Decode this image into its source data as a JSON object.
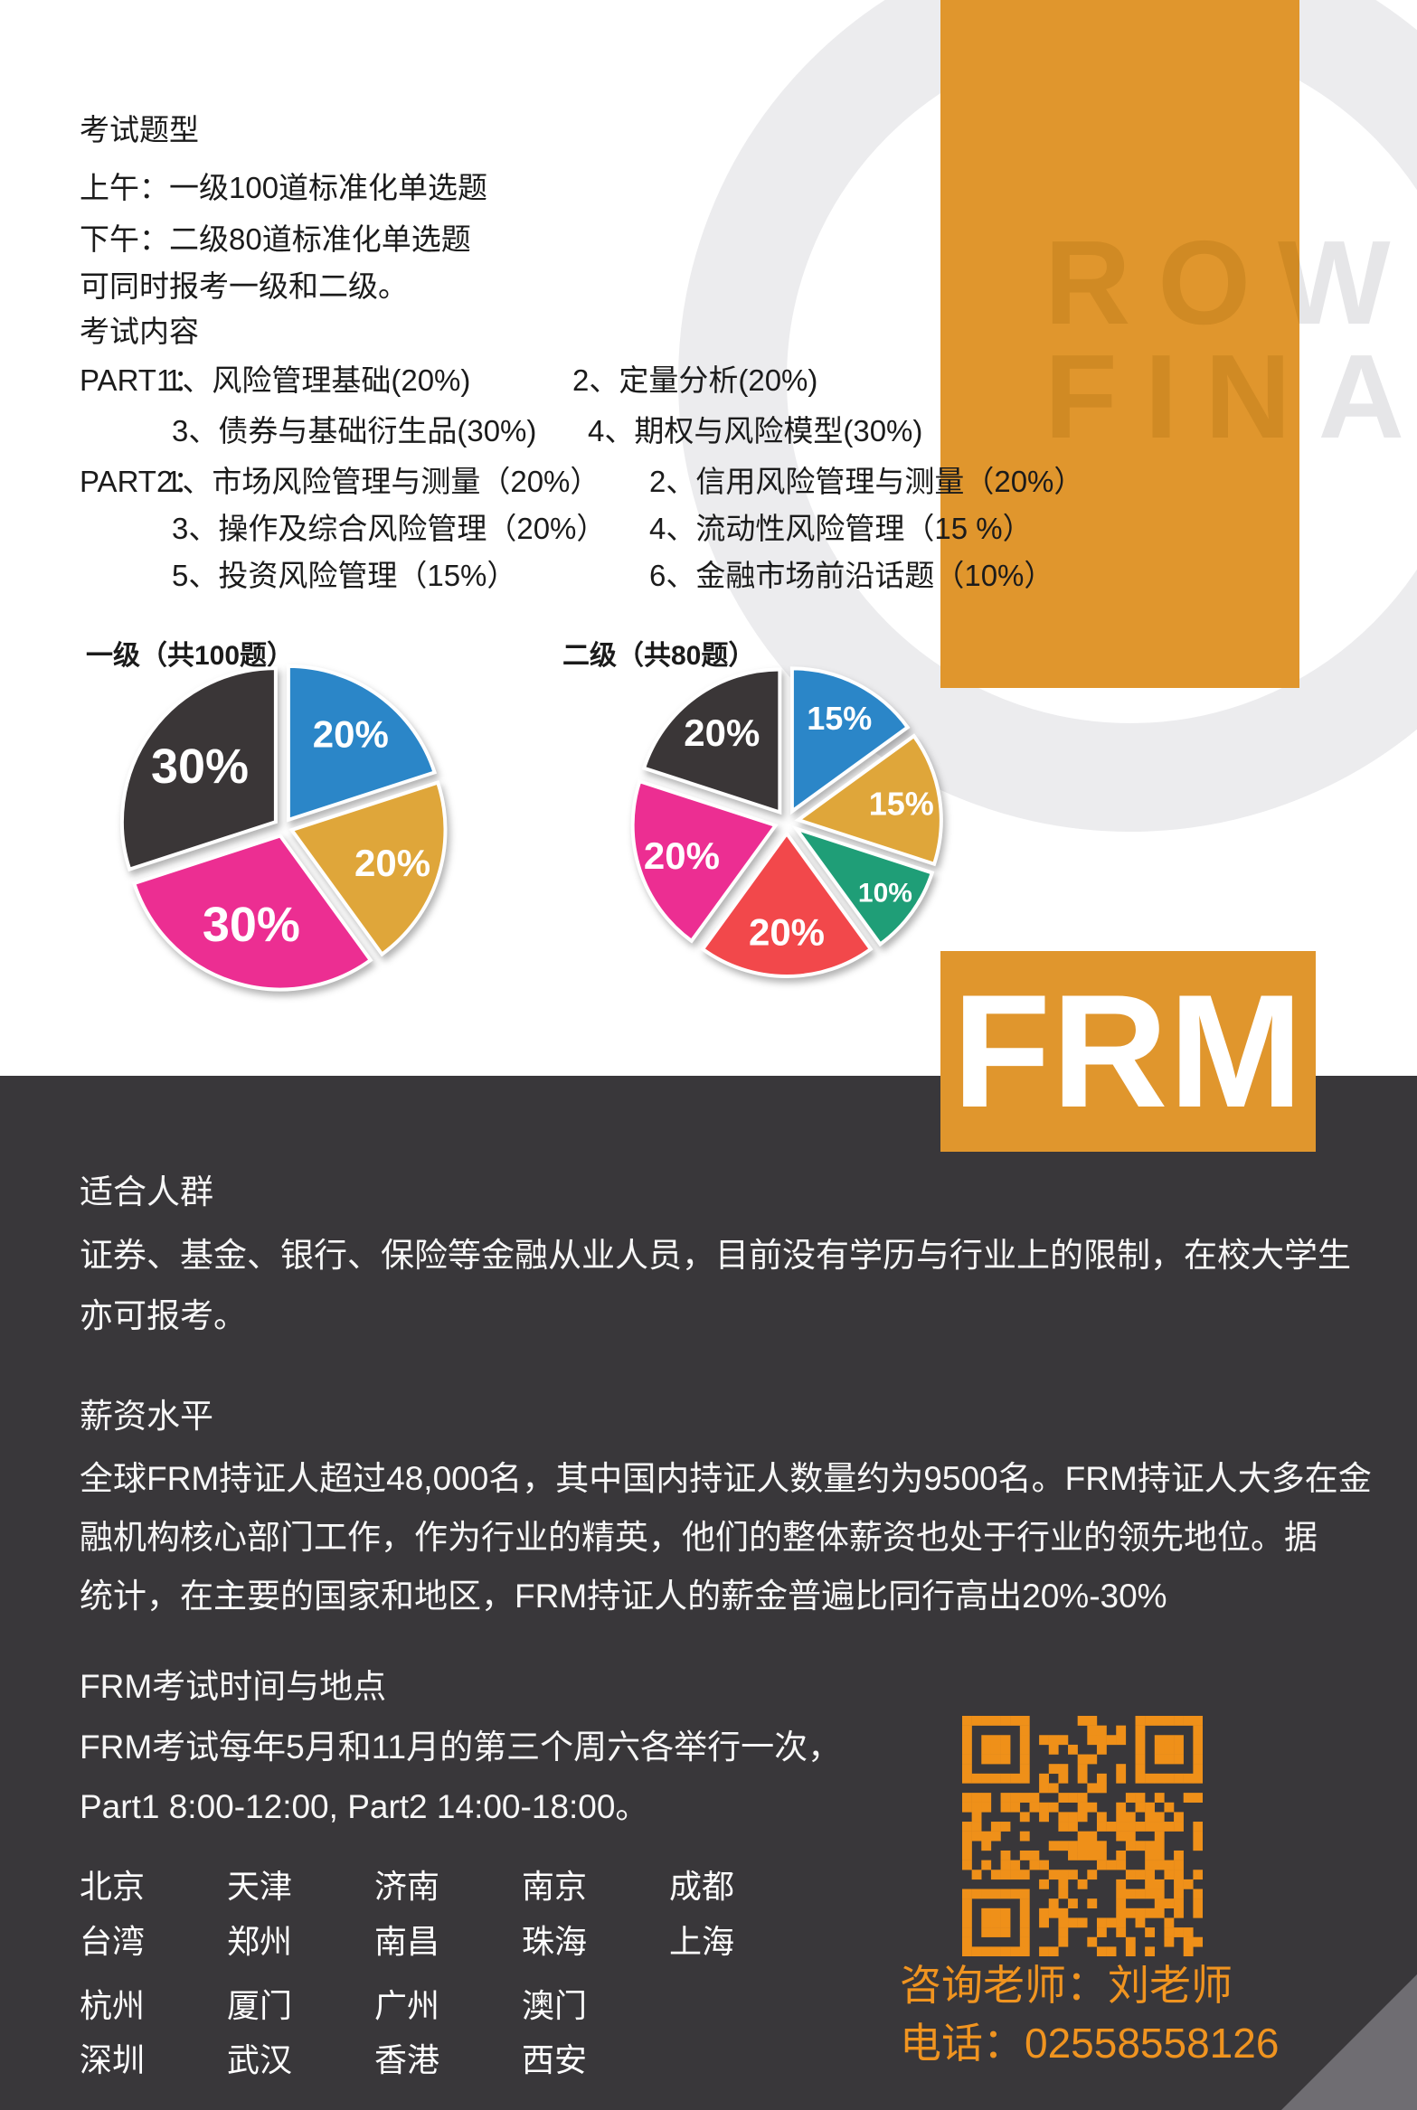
{
  "colors": {
    "accent_orange": "#e0962d",
    "qr_orange": "#ef9019",
    "contact_orange": "#f09420",
    "dark_bg": "#39373a"
  },
  "exam_format": {
    "heading": "考试题型",
    "line1": "上午：一级100道标准化单选题",
    "line2": "下午：二级80道标准化单选题",
    "line3": "可同时报考一级和二级。"
  },
  "syllabus": {
    "heading": "考试内容",
    "rows": [
      {
        "label": "PART1：",
        "col1": "1、风险管理基础(20%)",
        "col2": "2、定量分析(20%)"
      },
      {
        "label": "",
        "col1": "3、债券与基础衍生品(30%)",
        "col2": "4、期权与风险模型(30%)"
      },
      {
        "label": "PART2：",
        "col1": "1、市场风险管理与测量（20%）",
        "col2": "2、信用风险管理与测量（20%）"
      },
      {
        "label": "",
        "col1": "3、操作及综合风险管理（20%）",
        "col2": "4、流动性风险管理（15 %）"
      },
      {
        "label": "",
        "col1": "5、投资风险管理（15%）",
        "col2": "6、金融市场前沿话题（10%）"
      }
    ]
  },
  "chart_data": [
    {
      "type": "pie",
      "title": "一级（共100题）",
      "legend_position": "none",
      "slices": [
        {
          "label": "20%",
          "value": 20,
          "color": "#2b86c8"
        },
        {
          "label": "20%",
          "value": 20,
          "color": "#dfa63a"
        },
        {
          "label": "30%",
          "value": 30,
          "color": "#ec2e92"
        },
        {
          "label": "30%",
          "value": 30,
          "color": "#3a3637"
        }
      ]
    },
    {
      "type": "pie",
      "title": "二级（共80题）",
      "legend_position": "none",
      "slices": [
        {
          "label": "15%",
          "value": 15,
          "color": "#2b86c8"
        },
        {
          "label": "15%",
          "value": 15,
          "color": "#dfa63a"
        },
        {
          "label": "10%",
          "value": 10,
          "color": "#1f9e77"
        },
        {
          "label": "20%",
          "value": 20,
          "color": "#f2484b"
        },
        {
          "label": "20%",
          "value": 20,
          "color": "#ec2e92"
        },
        {
          "label": "20%",
          "value": 20,
          "color": "#3a3637"
        }
      ]
    }
  ],
  "watermark": {
    "line1": "ROW",
    "line2": "FINA"
  },
  "brand": {
    "frm": "FRM"
  },
  "audience": {
    "heading": "适合人群",
    "line1": "证券、基金、银行、保险等金融从业人员，目前没有学历与行业上的限制，在校大学生",
    "line2": "亦可报考。"
  },
  "salary": {
    "heading": "薪资水平",
    "line1": "全球FRM持证人超过48,000名，其中国内持证人数量约为9500名。FRM持证人大多在金",
    "line2": "融机构核心部门工作，作为行业的精英，他们的整体薪资也处于行业的领先地位。据",
    "line3": "统计，在主要的国家和地区，FRM持证人的薪金普遍比同行高出20%-30%"
  },
  "schedule": {
    "heading": "FRM考试时间与地点",
    "line1": "FRM考试每年5月和11月的第三个周六各举行一次，",
    "line2": "Part1  8:00-12:00, Part2  14:00-18:00。"
  },
  "cities": {
    "rows": [
      [
        "北京",
        "天津",
        "济南",
        "南京",
        "成都"
      ],
      [
        "台湾",
        "郑州",
        "南昌",
        "珠海",
        "上海"
      ],
      [
        "杭州",
        "厦门",
        "广州",
        "澳门"
      ],
      [
        "深圳",
        "武汉",
        "香港",
        "西安"
      ]
    ]
  },
  "contact": {
    "teacher": "咨询老师：刘老师",
    "phone": "电话：02558558126"
  }
}
